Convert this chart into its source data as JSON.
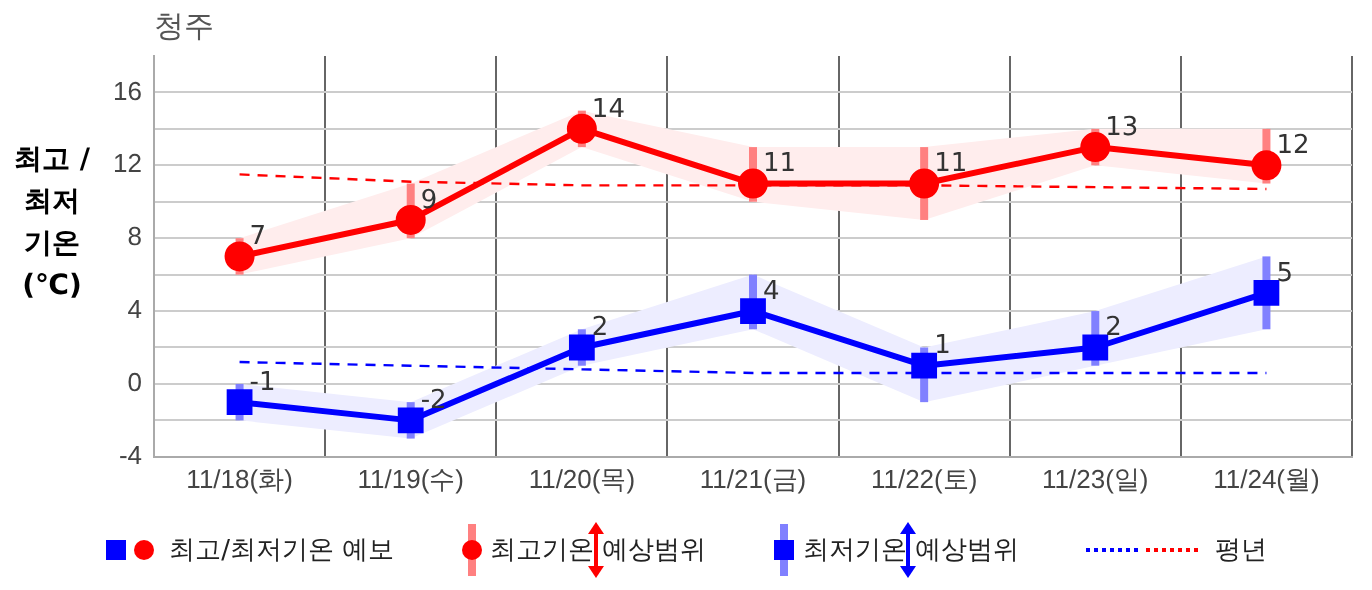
{
  "chart_data": {
    "type": "line",
    "title": "청주",
    "ylabel": "최고 / 최저 기온 (℃)",
    "categories": [
      "11/18(화)",
      "11/19(수)",
      "11/20(목)",
      "11/21(금)",
      "11/22(토)",
      "11/23(일)",
      "11/24(월)"
    ],
    "ylim": [
      -4,
      18
    ],
    "yticks": [
      -4,
      {
        "value": -2,
        "label": null
      },
      0,
      {
        "value": 2,
        "label": null
      },
      4,
      {
        "value": 6,
        "label": null
      },
      8,
      {
        "value": 10,
        "label": null
      },
      12,
      {
        "value": 14,
        "label": null
      },
      16
    ],
    "grid": true,
    "legend": "bottom",
    "annotations": [
      "최고기온 예상범위",
      "최저기온 예상범위"
    ],
    "series": [
      {
        "name": "최고/최저기온 예보",
        "color": "#ff0000",
        "marker": "circle",
        "line_style": "solid",
        "values": [
          7,
          9,
          14,
          11,
          11,
          13,
          12
        ],
        "value_labels": [
          "7",
          "9",
          "14",
          "11",
          "11",
          "13",
          "12"
        ],
        "errors": [
          [
            6,
            8
          ],
          [
            8,
            11
          ],
          [
            13,
            15
          ],
          [
            10,
            13
          ],
          [
            9,
            13
          ],
          [
            12,
            14
          ],
          [
            11,
            14
          ]
        ],
        "lower": [
          6,
          8,
          13,
          10,
          9,
          12,
          11
        ],
        "upper": [
          8,
          11,
          15,
          13,
          13,
          14,
          14
        ]
      },
      {
        "color": "#0000ff",
        "marker": "square",
        "line_style": "solid",
        "values": [
          -1,
          -2,
          2,
          4,
          1,
          2,
          5
        ],
        "value_labels": [
          "-1",
          "-2",
          "2",
          "4",
          "1",
          "2",
          "5"
        ],
        "errors": [
          [
            -2,
            0
          ],
          [
            -3,
            -1
          ],
          [
            1,
            3
          ],
          [
            3,
            6
          ],
          [
            -1,
            2
          ],
          [
            1,
            4
          ],
          [
            3,
            7
          ]
        ],
        "lower": [
          -2,
          -3,
          1,
          3,
          -1,
          1,
          3
        ],
        "upper": [
          0,
          -1,
          3,
          6,
          2,
          4,
          7
        ]
      },
      {
        "name": "평년",
        "color": "#ff0000",
        "marker": "none",
        "line_style": "dashed",
        "values": [
          11.5,
          11.1,
          10.9,
          10.9,
          10.9,
          10.8,
          10.7
        ]
      },
      {
        "color": "#0000ff",
        "marker": "none",
        "line_style": "dashed",
        "values": [
          1.2,
          1.0,
          0.8,
          0.6,
          0.6,
          0.6,
          0.6
        ]
      }
    ]
  }
}
